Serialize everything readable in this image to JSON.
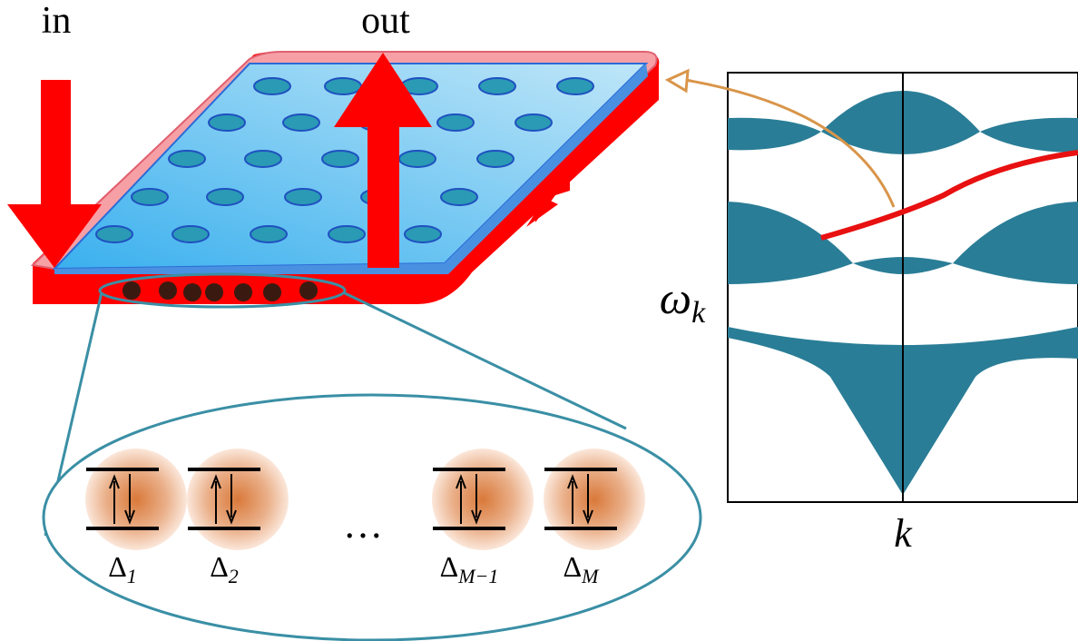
{
  "labels": {
    "input": "in",
    "output": "out",
    "frequency_axis": {
      "symbol": "ω",
      "subscript": "k"
    },
    "momentum_axis": "k"
  },
  "emitters": [
    {
      "symbol": "Δ",
      "subscript": "1"
    },
    {
      "symbol": "Δ",
      "subscript": "2"
    },
    {
      "symbol": "Δ",
      "subscript": "M−1"
    },
    {
      "symbol": "Δ",
      "subscript": "M"
    }
  ],
  "ellipsis": "…"
}
